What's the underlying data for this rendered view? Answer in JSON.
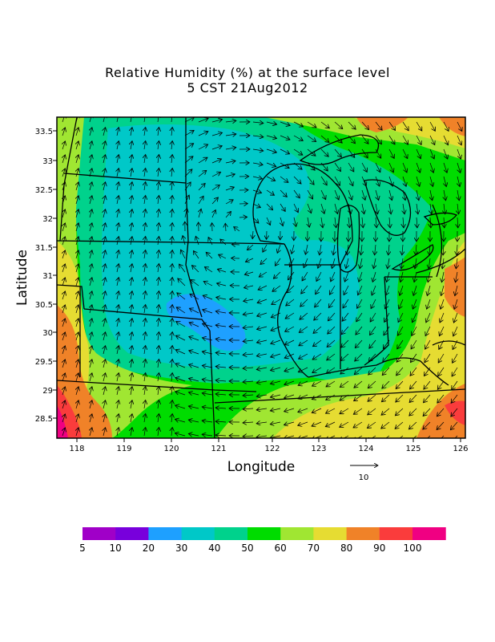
{
  "title_line1": "Relative Humidity (%) at the surface level",
  "title_line2": "5 CST 21Aug2012",
  "xlabel": "Longitude",
  "ylabel": "Latitude",
  "vector_scale_label": "10",
  "x_ticks": [
    "118",
    "119",
    "120",
    "121",
    "122",
    "123",
    "124",
    "125",
    "126"
  ],
  "y_ticks": [
    "33.5",
    "33",
    "32.5",
    "32",
    "31.5",
    "31",
    "30.5",
    "30",
    "29.5",
    "29",
    "28.5"
  ],
  "colorbar": {
    "labels": [
      "5",
      "10",
      "20",
      "30",
      "40",
      "50",
      "60",
      "70",
      "80",
      "90",
      "100"
    ],
    "colors": [
      "#a000c8",
      "#7800dc",
      "#1ea0ff",
      "#00c8c8",
      "#00d28c",
      "#00dc00",
      "#a0e632",
      "#e6dc32",
      "#f08228",
      "#fa3c3c",
      "#f00082"
    ]
  },
  "chart_data": {
    "type": "heatmap",
    "title": "Relative Humidity (%) at the surface level",
    "subtitle": "5 CST 21Aug2012",
    "xlabel": "Longitude",
    "ylabel": "Latitude",
    "xlim": [
      117.6,
      126.1
    ],
    "ylim": [
      28.2,
      33.8
    ],
    "levels": [
      5,
      10,
      20,
      30,
      40,
      50,
      60,
      70,
      80,
      90,
      100
    ],
    "regions": [
      {
        "name": "central plains",
        "range": "40-50"
      },
      {
        "name": "minimum near 121.0 / 30.2",
        "range": "20-30"
      },
      {
        "name": "western and southern edges",
        "range": "50-70"
      },
      {
        "name": "southwest corner",
        "range": "80-100"
      },
      {
        "name": "east and southeast",
        "range": "70-90"
      }
    ],
    "wind_vectors": true
  }
}
